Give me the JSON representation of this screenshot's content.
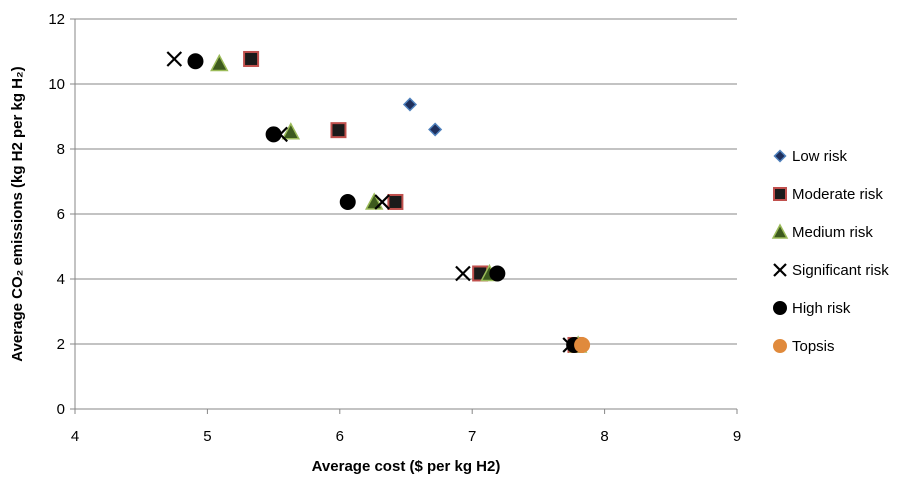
{
  "chart_data": {
    "type": "scatter",
    "title": "",
    "xlabel": "Average cost ($ per kg H2)",
    "ylabel": "Average CO₂ emissions (kg H2 per kg H₂)",
    "xlim": [
      4,
      9
    ],
    "ylim": [
      0,
      12
    ],
    "x_ticks": [
      "4",
      "5",
      "6",
      "7",
      "8",
      "9"
    ],
    "y_ticks": [
      "0",
      "2",
      "4",
      "6",
      "8",
      "10",
      "12"
    ],
    "grid": "horizontal",
    "legend_position": "right",
    "series": [
      {
        "name": "Low risk",
        "marker": "diamond",
        "color": "#1f2f5c",
        "stroke": "#4f81bd",
        "x": [
          6.53,
          6.72
        ],
        "y": [
          9.37,
          8.6
        ]
      },
      {
        "name": "Moderate risk",
        "marker": "square",
        "color": "#1a1a1a",
        "stroke": "#c0504d",
        "x": [
          5.33,
          5.99,
          6.42,
          7.06,
          7.78
        ],
        "y": [
          10.77,
          8.58,
          6.37,
          4.17,
          1.97
        ]
      },
      {
        "name": "Medium risk",
        "marker": "triangle",
        "color": "#3d5a1e",
        "stroke": "#9bbb59",
        "x": [
          5.09,
          5.63,
          6.26,
          7.13,
          7.8
        ],
        "y": [
          10.63,
          8.53,
          6.37,
          4.17,
          1.97
        ]
      },
      {
        "name": "Significant risk",
        "marker": "x",
        "color": "#000000",
        "stroke": "#000000",
        "x": [
          4.75,
          5.55,
          6.32,
          6.93,
          7.74
        ],
        "y": [
          10.77,
          8.45,
          6.37,
          4.17,
          1.97
        ]
      },
      {
        "name": "High risk",
        "marker": "circle",
        "color": "#000000",
        "stroke": "#000000",
        "x": [
          4.91,
          5.5,
          6.06,
          7.19,
          7.77
        ],
        "y": [
          10.7,
          8.45,
          6.37,
          4.17,
          1.97
        ]
      },
      {
        "name": "Topsis",
        "marker": "circle",
        "color": "#e08a3c",
        "stroke": "#e08a3c",
        "x": [
          7.83
        ],
        "y": [
          1.97
        ]
      }
    ]
  }
}
